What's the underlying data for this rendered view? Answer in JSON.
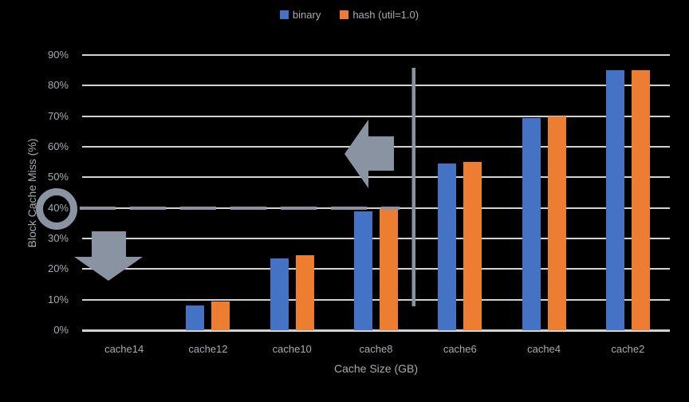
{
  "chart_data": {
    "type": "bar",
    "title": "",
    "categories": [
      "cache14",
      "cache12",
      "cache10",
      "cache8",
      "cache6",
      "cache4",
      "cache2"
    ],
    "series": [
      {
        "name": "binary",
        "color": "#4472C4",
        "values": [
          0,
          8,
          23.5,
          39,
          54.5,
          69.5,
          85
        ]
      },
      {
        "name": "hash (util=1.0)",
        "color": "#ED7D31",
        "values": [
          0,
          9.5,
          24.5,
          40,
          55,
          70,
          85
        ]
      }
    ],
    "xlabel": "Cache Size (GB)",
    "ylabel": "Block Cache Miss (%)",
    "ylim": [
      0,
      90
    ],
    "ytick_step": 10,
    "ytick_labels": [
      "0%",
      "10%",
      "20%",
      "30%",
      "40%",
      "50%",
      "60%",
      "70%",
      "80%",
      "90%"
    ],
    "grid": true,
    "legend_position": "top-center",
    "plot_background": "#000000"
  },
  "legend": {
    "items": [
      {
        "label": "binary",
        "color": "#4472C4"
      },
      {
        "label": "hash (util=1.0)",
        "color": "#ED7D31"
      }
    ]
  },
  "annotations": {
    "dashed_threshold_line": {
      "at_value": "40%",
      "style": "long-dash",
      "color": "#8A93A2"
    },
    "circle_highlight": {
      "around": "40% y-axis tick label",
      "color": "#8A93A2"
    },
    "left_arrow": {
      "meaning": "points left toward 40% threshold region",
      "color": "#8A93A2"
    },
    "down_arrow": {
      "meaning": "points down below 40% near y-axis",
      "color": "#8A93A2"
    },
    "vertical_divider": {
      "between": "cache8 and cache6",
      "color": "#8A93A2"
    }
  },
  "colors": {
    "background": "#000000",
    "gridline": "#D2D2D2",
    "axis_text": "#A6ABB2",
    "annotation_gray": "#8A93A2"
  }
}
